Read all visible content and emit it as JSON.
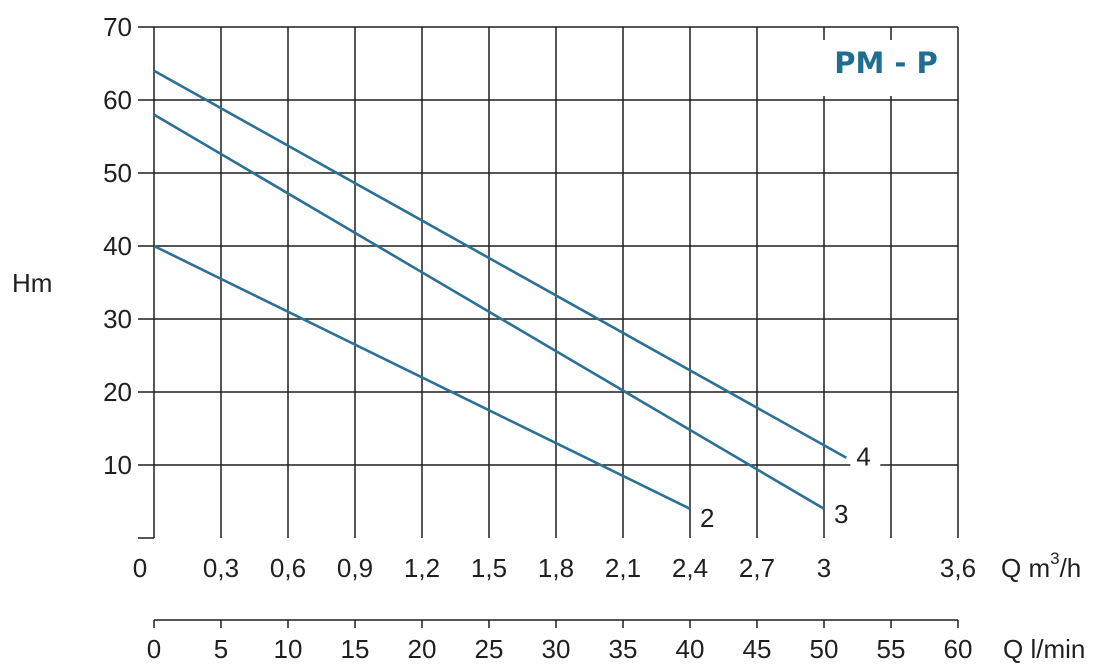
{
  "chart_data": {
    "type": "line",
    "title": "PM - P",
    "ylabel": "Hm",
    "xlabel": "Q m³/h",
    "xlabel_parts": {
      "prefix": "Q m",
      "sup": "3",
      "suffix": "/h"
    },
    "xlabel2": "Q l/min",
    "xlim": [
      0,
      3.6
    ],
    "ylim": [
      0,
      70
    ],
    "x2lim": [
      0,
      60
    ],
    "x_ticks": [
      0,
      0.3,
      0.6,
      0.9,
      1.2,
      1.5,
      1.8,
      2.1,
      2.4,
      2.7,
      3,
      3.6
    ],
    "x_tick_labels": [
      "0",
      "0,3",
      "0,6",
      "0,9",
      "1,2",
      "1,5",
      "1,8",
      "2,1",
      "2,4",
      "2,7",
      "3",
      "3,6"
    ],
    "y_ticks": [
      10,
      20,
      30,
      40,
      50,
      60,
      70
    ],
    "y_tick_labels": [
      "10",
      "20",
      "30",
      "40",
      "50",
      "60",
      "70"
    ],
    "x2_ticks": [
      0,
      5,
      10,
      15,
      20,
      25,
      30,
      35,
      40,
      45,
      50,
      55,
      60
    ],
    "x2_tick_labels": [
      "0",
      "5",
      "10",
      "15",
      "20",
      "25",
      "30",
      "35",
      "40",
      "45",
      "50",
      "55",
      "60"
    ],
    "grid": true,
    "line_color": "#2b7096",
    "title_color": "#1e6e91",
    "series": [
      {
        "name": "2",
        "x": [
          0,
          2.4
        ],
        "y": [
          40,
          4
        ]
      },
      {
        "name": "3",
        "x": [
          0,
          3.0
        ],
        "y": [
          58,
          4
        ]
      },
      {
        "name": "4",
        "x": [
          0,
          3.1
        ],
        "y": [
          64,
          11
        ]
      }
    ]
  }
}
